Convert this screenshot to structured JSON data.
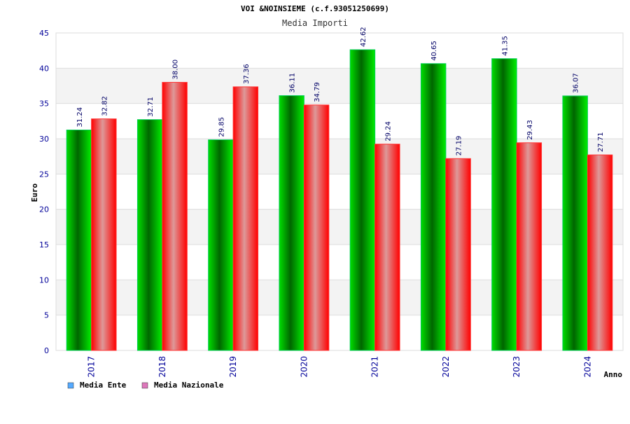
{
  "title": "VOI &NOINSIEME (c.f.93051250699)",
  "subtitle": "Media Importi",
  "colors": {
    "ente": "#00cc00",
    "ente_dark": "#006600",
    "nazionale": "#ff1111",
    "nazionale_light": "#dd9999",
    "axis_text": "#000099",
    "grid": "#dddddd",
    "band": "#f3f3f3"
  },
  "chart_data": {
    "type": "bar",
    "title": "VOI &NOINSIEME (c.f.93051250699)",
    "subtitle": "Media Importi",
    "xlabel": "Anno",
    "ylabel": "Euro",
    "categories": [
      "2017",
      "2018",
      "2019",
      "2020",
      "2021",
      "2022",
      "2023",
      "2024"
    ],
    "series": [
      {
        "name": "Media Ente",
        "values": [
          31.24,
          32.71,
          29.85,
          36.11,
          42.62,
          40.65,
          41.35,
          36.07
        ],
        "labels": [
          "31.24",
          "32.71",
          "29.85",
          "36.11",
          "42.62",
          "40.65",
          "41.35",
          "36.07"
        ]
      },
      {
        "name": "Media Nazionale",
        "values": [
          32.82,
          38.0,
          37.36,
          34.79,
          29.24,
          27.19,
          29.43,
          27.71
        ],
        "labels": [
          "32.82",
          "38.00",
          "37.36",
          "34.79",
          "29.24",
          "27.19",
          "29.43",
          "27.71"
        ]
      }
    ],
    "ylim": [
      0,
      45
    ],
    "yticks": [
      "0",
      "5",
      "10",
      "15",
      "20",
      "25",
      "30",
      "35",
      "40",
      "45"
    ],
    "grid": true,
    "legend": "bottom-left"
  }
}
